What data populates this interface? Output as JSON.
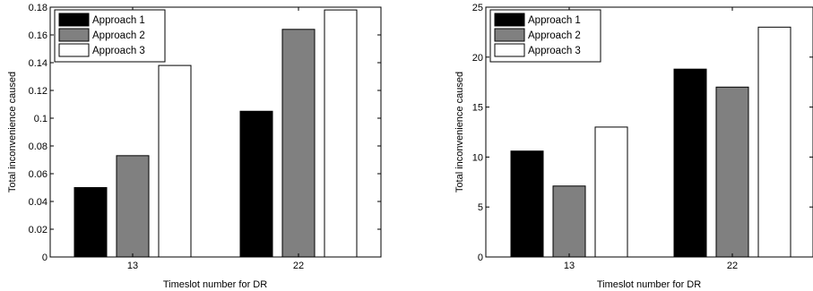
{
  "chart_data": [
    {
      "type": "bar",
      "categories": [
        "13",
        "22"
      ],
      "series": [
        {
          "name": "Approach 1",
          "color": "#000000",
          "values": [
            0.05,
            0.105
          ]
        },
        {
          "name": "Approach 2",
          "color": "#808080",
          "values": [
            0.073,
            0.164
          ]
        },
        {
          "name": "Approach 3",
          "color": "#ffffff",
          "values": [
            0.138,
            0.178
          ]
        }
      ],
      "title": "",
      "xlabel": "Timeslot number for DR",
      "ylabel": "Total inconvenience caused",
      "ylim": [
        0,
        0.18
      ],
      "yticks": [
        "0",
        "0.02",
        "0.04",
        "0.06",
        "0.08",
        "0.1",
        "0.12",
        "0.14",
        "0.16",
        "0.18"
      ],
      "grid": false,
      "legend": "top-left"
    },
    {
      "type": "bar",
      "categories": [
        "13",
        "22"
      ],
      "series": [
        {
          "name": "Approach 1",
          "color": "#000000",
          "values": [
            10.6,
            18.8
          ]
        },
        {
          "name": "Approach 2",
          "color": "#808080",
          "values": [
            7.1,
            17.0
          ]
        },
        {
          "name": "Approach 3",
          "color": "#ffffff",
          "values": [
            13.0,
            23.0
          ]
        }
      ],
      "title": "",
      "xlabel": "Timeslot number for DR",
      "ylabel": "Total inconvenience caused",
      "ylim": [
        0,
        25
      ],
      "yticks": [
        "0",
        "5",
        "10",
        "15",
        "20",
        "25"
      ],
      "grid": false,
      "legend": "top-left"
    }
  ]
}
